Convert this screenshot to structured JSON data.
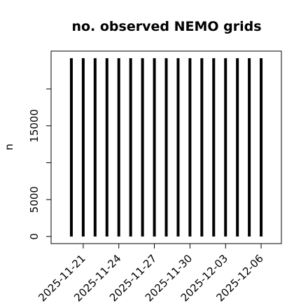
{
  "chart_data": {
    "type": "bar",
    "title": "no. observed NEMO grids",
    "y_label": "n",
    "x": [
      "2025-11-20",
      "2025-11-21",
      "2025-11-22",
      "2025-11-23",
      "2025-11-24",
      "2025-11-25",
      "2025-11-26",
      "2025-11-27",
      "2025-11-28",
      "2025-11-29",
      "2025-11-30",
      "2025-12-01",
      "2025-12-02",
      "2025-12-03",
      "2025-12-04",
      "2025-12-05",
      "2025-12-06"
    ],
    "values": [
      24160,
      24160,
      24160,
      24160,
      24160,
      24160,
      24160,
      24160,
      24160,
      24160,
      24160,
      24160,
      24160,
      24160,
      24160,
      24160,
      24160
    ],
    "color": "#000000",
    "xlim": [
      "2025-11-18T07:00",
      "2025-12-07T17:00"
    ],
    "xticks": [
      "2025-11-21",
      "2025-11-24",
      "2025-11-27",
      "2025-11-30",
      "2025-12-03",
      "2025-12-06"
    ],
    "ylim": [
      -966,
      25126
    ],
    "yticks": [
      0,
      5000,
      {
        "value": 10000,
        "label": ""
      },
      15000,
      {
        "value": 20000,
        "label": ""
      }
    ]
  }
}
